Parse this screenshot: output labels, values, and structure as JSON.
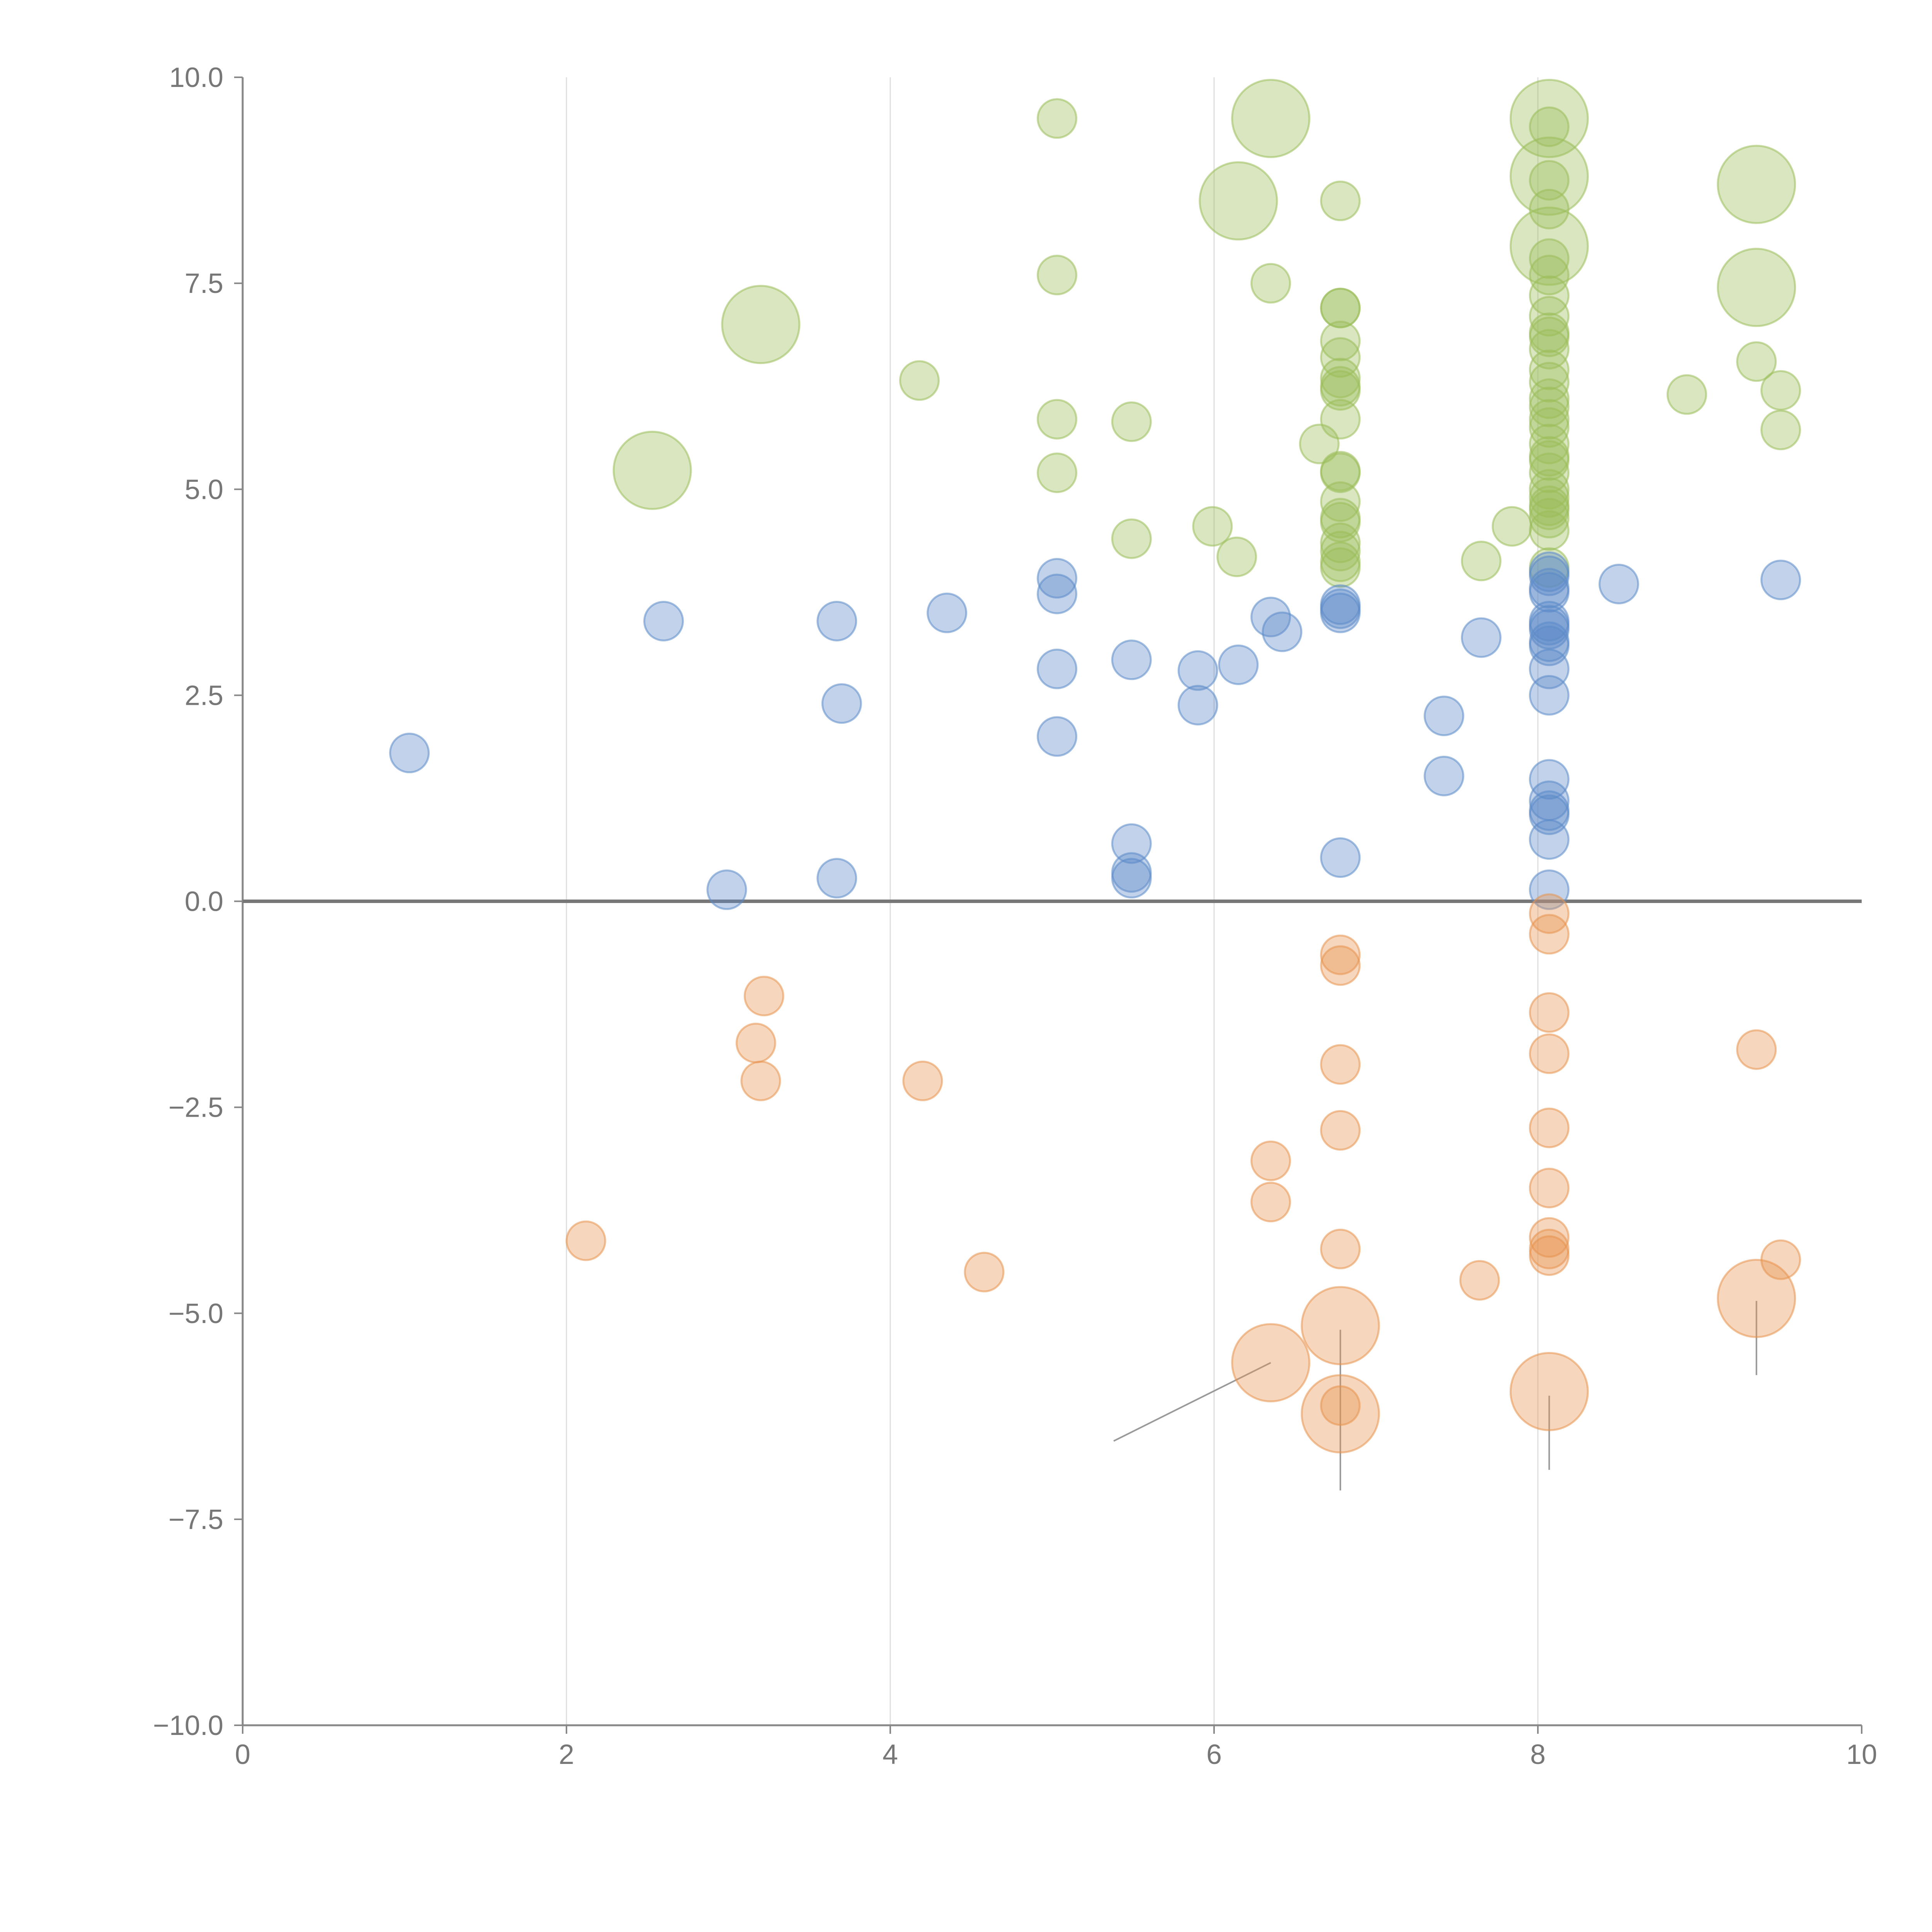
{
  "colors": {
    "positive_high": "#9bbe59",
    "positive_low": "#5b8ac9",
    "negative": "#e8934f",
    "axis": "#888888",
    "grid": "#dddddd",
    "zero_line": "#777777",
    "leader": "#999999"
  },
  "chart_data": {
    "type": "scatter",
    "title": "",
    "xlabel": "",
    "ylabel": "",
    "xlim": [
      0,
      10
    ],
    "ylim": [
      -10,
      10
    ],
    "x_ticks": [
      "0",
      "2",
      "4",
      "6",
      "8",
      "10"
    ],
    "y_ticks": [
      "10.0",
      "7.5",
      "5.0",
      "2.5",
      "0.0",
      "−2.5",
      "−5.0",
      "−7.5",
      "−10.0"
    ],
    "x_grid": [
      2,
      4,
      6,
      8
    ],
    "reference_line_y": 0,
    "series": [
      {
        "name": "high",
        "color_key": "positive_high",
        "points": [
          {
            "x": 5.03,
            "y": 9.5,
            "size": 1
          },
          {
            "x": 6.35,
            "y": 9.5,
            "size": 3
          },
          {
            "x": 8.07,
            "y": 9.5,
            "size": 3
          },
          {
            "x": 8.07,
            "y": 9.4,
            "size": 1
          },
          {
            "x": 6.15,
            "y": 8.5,
            "size": 3
          },
          {
            "x": 6.78,
            "y": 8.5,
            "size": 1
          },
          {
            "x": 8.07,
            "y": 8.8,
            "size": 3
          },
          {
            "x": 8.07,
            "y": 8.75,
            "size": 1
          },
          {
            "x": 9.35,
            "y": 8.7,
            "size": 3
          },
          {
            "x": 8.07,
            "y": 8.4,
            "size": 1
          },
          {
            "x": 8.07,
            "y": 7.95,
            "size": 3
          },
          {
            "x": 8.07,
            "y": 7.8,
            "size": 1
          },
          {
            "x": 5.03,
            "y": 7.6,
            "size": 1
          },
          {
            "x": 6.35,
            "y": 7.5,
            "size": 1
          },
          {
            "x": 9.35,
            "y": 7.45,
            "size": 3
          },
          {
            "x": 8.07,
            "y": 7.6,
            "size": 1
          },
          {
            "x": 8.07,
            "y": 7.35,
            "size": 1
          },
          {
            "x": 8.07,
            "y": 7.1,
            "size": 1
          },
          {
            "x": 6.78,
            "y": 7.2,
            "size": 1
          },
          {
            "x": 6.78,
            "y": 7.2,
            "size": 1
          },
          {
            "x": 3.2,
            "y": 7.0,
            "size": 3
          },
          {
            "x": 8.07,
            "y": 6.9,
            "size": 1
          },
          {
            "x": 8.07,
            "y": 6.85,
            "size": 1
          },
          {
            "x": 6.78,
            "y": 6.8,
            "size": 1
          },
          {
            "x": 8.07,
            "y": 6.7,
            "size": 1
          },
          {
            "x": 6.78,
            "y": 6.6,
            "size": 1
          },
          {
            "x": 9.35,
            "y": 6.55,
            "size": 1
          },
          {
            "x": 8.07,
            "y": 6.45,
            "size": 1
          },
          {
            "x": 6.78,
            "y": 6.35,
            "size": 1
          },
          {
            "x": 4.18,
            "y": 6.32,
            "size": 1
          },
          {
            "x": 8.07,
            "y": 6.3,
            "size": 1
          },
          {
            "x": 6.78,
            "y": 6.25,
            "size": 1
          },
          {
            "x": 6.78,
            "y": 6.2,
            "size": 1
          },
          {
            "x": 9.5,
            "y": 6.2,
            "size": 1
          },
          {
            "x": 8.92,
            "y": 6.15,
            "size": 1
          },
          {
            "x": 8.07,
            "y": 6.1,
            "size": 1
          },
          {
            "x": 8.07,
            "y": 6.0,
            "size": 1
          },
          {
            "x": 5.03,
            "y": 5.85,
            "size": 1
          },
          {
            "x": 5.49,
            "y": 5.82,
            "size": 1
          },
          {
            "x": 6.78,
            "y": 5.85,
            "size": 1
          },
          {
            "x": 8.07,
            "y": 5.85,
            "size": 1
          },
          {
            "x": 8.07,
            "y": 5.75,
            "size": 1
          },
          {
            "x": 9.5,
            "y": 5.72,
            "size": 1
          },
          {
            "x": 6.65,
            "y": 5.55,
            "size": 1
          },
          {
            "x": 8.07,
            "y": 5.55,
            "size": 1
          },
          {
            "x": 8.07,
            "y": 5.4,
            "size": 1
          },
          {
            "x": 8.07,
            "y": 5.35,
            "size": 1
          },
          {
            "x": 2.53,
            "y": 5.23,
            "size": 3
          },
          {
            "x": 5.03,
            "y": 5.2,
            "size": 1
          },
          {
            "x": 6.78,
            "y": 5.22,
            "size": 1
          },
          {
            "x": 6.78,
            "y": 5.2,
            "size": 1
          },
          {
            "x": 8.07,
            "y": 5.2,
            "size": 1
          },
          {
            "x": 8.07,
            "y": 5.0,
            "size": 1
          },
          {
            "x": 8.07,
            "y": 4.9,
            "size": 1
          },
          {
            "x": 6.78,
            "y": 4.85,
            "size": 1
          },
          {
            "x": 8.07,
            "y": 4.8,
            "size": 1
          },
          {
            "x": 8.07,
            "y": 4.75,
            "size": 1
          },
          {
            "x": 8.07,
            "y": 4.65,
            "size": 1
          },
          {
            "x": 6.78,
            "y": 4.65,
            "size": 1
          },
          {
            "x": 6.78,
            "y": 4.6,
            "size": 1
          },
          {
            "x": 5.99,
            "y": 4.55,
            "size": 1
          },
          {
            "x": 7.84,
            "y": 4.55,
            "size": 1
          },
          {
            "x": 8.07,
            "y": 4.5,
            "size": 1
          },
          {
            "x": 5.49,
            "y": 4.4,
            "size": 1
          },
          {
            "x": 6.78,
            "y": 4.35,
            "size": 1
          },
          {
            "x": 6.78,
            "y": 4.25,
            "size": 1
          },
          {
            "x": 6.14,
            "y": 4.18,
            "size": 1
          },
          {
            "x": 7.65,
            "y": 4.13,
            "size": 1
          },
          {
            "x": 6.78,
            "y": 4.12,
            "size": 1
          },
          {
            "x": 6.78,
            "y": 4.05,
            "size": 1
          },
          {
            "x": 8.07,
            "y": 4.05,
            "size": 1
          }
        ]
      },
      {
        "name": "low",
        "color_key": "positive_low",
        "points": [
          {
            "x": 5.03,
            "y": 3.92,
            "size": 1
          },
          {
            "x": 8.07,
            "y": 4.0,
            "size": 1
          },
          {
            "x": 8.07,
            "y": 3.95,
            "size": 1
          },
          {
            "x": 9.5,
            "y": 3.9,
            "size": 1
          },
          {
            "x": 8.5,
            "y": 3.85,
            "size": 1
          },
          {
            "x": 8.07,
            "y": 3.8,
            "size": 1
          },
          {
            "x": 8.07,
            "y": 3.75,
            "size": 1
          },
          {
            "x": 5.03,
            "y": 3.73,
            "size": 1
          },
          {
            "x": 6.78,
            "y": 3.6,
            "size": 1
          },
          {
            "x": 6.78,
            "y": 3.55,
            "size": 1
          },
          {
            "x": 6.78,
            "y": 3.5,
            "size": 1
          },
          {
            "x": 4.35,
            "y": 3.5,
            "size": 1
          },
          {
            "x": 6.35,
            "y": 3.45,
            "size": 1
          },
          {
            "x": 2.6,
            "y": 3.4,
            "size": 1
          },
          {
            "x": 3.67,
            "y": 3.4,
            "size": 1
          },
          {
            "x": 8.07,
            "y": 3.4,
            "size": 1
          },
          {
            "x": 8.07,
            "y": 3.35,
            "size": 1
          },
          {
            "x": 8.07,
            "y": 3.3,
            "size": 1
          },
          {
            "x": 6.42,
            "y": 3.27,
            "size": 1
          },
          {
            "x": 7.65,
            "y": 3.2,
            "size": 1
          },
          {
            "x": 8.07,
            "y": 3.15,
            "size": 1
          },
          {
            "x": 8.07,
            "y": 3.1,
            "size": 1
          },
          {
            "x": 5.49,
            "y": 2.93,
            "size": 1
          },
          {
            "x": 6.15,
            "y": 2.87,
            "size": 1
          },
          {
            "x": 5.03,
            "y": 2.82,
            "size": 1
          },
          {
            "x": 5.9,
            "y": 2.8,
            "size": 1
          },
          {
            "x": 8.07,
            "y": 2.82,
            "size": 1
          },
          {
            "x": 8.07,
            "y": 2.5,
            "size": 1
          },
          {
            "x": 3.7,
            "y": 2.4,
            "size": 1
          },
          {
            "x": 5.9,
            "y": 2.38,
            "size": 1
          },
          {
            "x": 7.42,
            "y": 2.25,
            "size": 1
          },
          {
            "x": 5.03,
            "y": 2.0,
            "size": 1
          },
          {
            "x": 1.03,
            "y": 1.8,
            "size": 1
          },
          {
            "x": 7.42,
            "y": 1.52,
            "size": 1
          },
          {
            "x": 8.07,
            "y": 1.48,
            "size": 1
          },
          {
            "x": 8.07,
            "y": 1.22,
            "size": 1
          },
          {
            "x": 8.07,
            "y": 1.1,
            "size": 1
          },
          {
            "x": 8.07,
            "y": 1.05,
            "size": 1
          },
          {
            "x": 8.07,
            "y": 0.75,
            "size": 1
          },
          {
            "x": 5.49,
            "y": 0.7,
            "size": 1
          },
          {
            "x": 6.78,
            "y": 0.53,
            "size": 1
          },
          {
            "x": 5.49,
            "y": 0.35,
            "size": 1
          },
          {
            "x": 3.67,
            "y": 0.28,
            "size": 1
          },
          {
            "x": 5.49,
            "y": 0.28,
            "size": 1
          },
          {
            "x": 2.99,
            "y": 0.14,
            "size": 1
          },
          {
            "x": 8.07,
            "y": 0.14,
            "size": 1
          }
        ]
      },
      {
        "name": "negative",
        "color_key": "negative",
        "points": [
          {
            "x": 8.07,
            "y": -0.15,
            "size": 1
          },
          {
            "x": 8.07,
            "y": -0.4,
            "size": 1
          },
          {
            "x": 6.78,
            "y": -0.65,
            "size": 1
          },
          {
            "x": 6.78,
            "y": -0.78,
            "size": 1
          },
          {
            "x": 3.22,
            "y": -1.15,
            "size": 1
          },
          {
            "x": 8.07,
            "y": -1.35,
            "size": 1
          },
          {
            "x": 3.17,
            "y": -1.72,
            "size": 1
          },
          {
            "x": 9.35,
            "y": -1.8,
            "size": 1
          },
          {
            "x": 8.07,
            "y": -1.85,
            "size": 1
          },
          {
            "x": 6.78,
            "y": -1.98,
            "size": 1
          },
          {
            "x": 3.2,
            "y": -2.18,
            "size": 1
          },
          {
            "x": 4.2,
            "y": -2.18,
            "size": 1
          },
          {
            "x": 8.07,
            "y": -2.75,
            "size": 1
          },
          {
            "x": 6.78,
            "y": -2.78,
            "size": 1
          },
          {
            "x": 6.35,
            "y": -3.15,
            "size": 1
          },
          {
            "x": 8.07,
            "y": -3.48,
            "size": 1
          },
          {
            "x": 6.35,
            "y": -3.65,
            "size": 1
          },
          {
            "x": 2.12,
            "y": -4.12,
            "size": 1
          },
          {
            "x": 8.07,
            "y": -4.08,
            "size": 1
          },
          {
            "x": 8.07,
            "y": -4.22,
            "size": 1
          },
          {
            "x": 8.07,
            "y": -4.3,
            "size": 1
          },
          {
            "x": 6.78,
            "y": -4.22,
            "size": 1
          },
          {
            "x": 9.5,
            "y": -4.35,
            "size": 1
          },
          {
            "x": 4.58,
            "y": -4.5,
            "size": 1
          },
          {
            "x": 7.64,
            "y": -4.6,
            "size": 1
          },
          {
            "x": 9.35,
            "y": -4.82,
            "size": 3
          },
          {
            "x": 6.78,
            "y": -5.15,
            "size": 3
          },
          {
            "x": 6.35,
            "y": -5.6,
            "size": 3
          },
          {
            "x": 8.07,
            "y": -5.95,
            "size": 3
          },
          {
            "x": 6.78,
            "y": -6.12,
            "size": 1
          },
          {
            "x": 6.78,
            "y": -6.22,
            "size": 3
          }
        ]
      }
    ],
    "leader_lines": [
      {
        "x1": 6.35,
        "y1": -5.6,
        "x2": 5.38,
        "y2": -6.55
      },
      {
        "x1": 6.78,
        "y1": -5.2,
        "x2": 6.78,
        "y2": -7.15
      },
      {
        "x1": 8.07,
        "y1": -6.0,
        "x2": 8.07,
        "y2": -6.9
      },
      {
        "x1": 9.35,
        "y1": -4.85,
        "x2": 9.35,
        "y2": -5.75
      }
    ]
  }
}
